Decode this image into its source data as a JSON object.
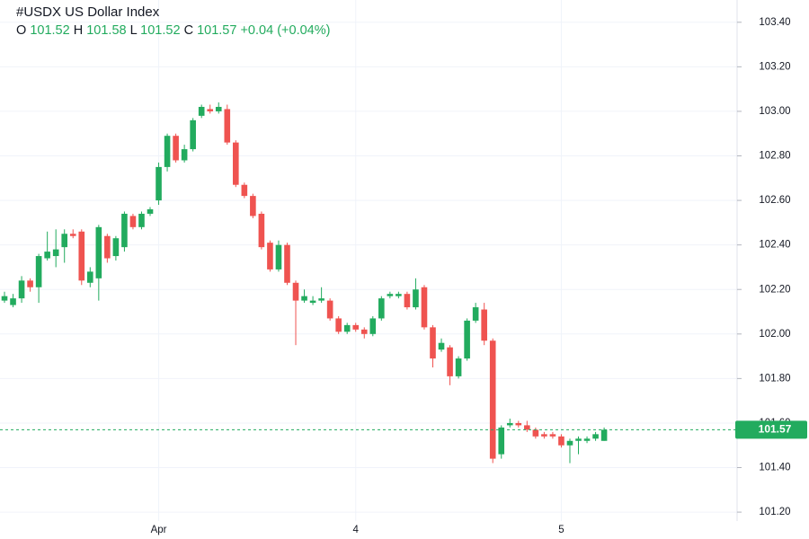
{
  "chart_data": {
    "type": "candlestick",
    "title": "#USDX US Dollar Index",
    "header": {
      "open_label": "O",
      "open": 101.52,
      "high_label": "H",
      "high": 101.58,
      "low_label": "L",
      "low": 101.52,
      "close_label": "C",
      "close": 101.57,
      "change": "+0.04",
      "change_pct": "(+0.04%)"
    },
    "categories": [
      null,
      null,
      null,
      null,
      null,
      null,
      null,
      null,
      null,
      null,
      null,
      null,
      null,
      null,
      null,
      null,
      null,
      null,
      "Apr",
      null,
      null,
      null,
      null,
      null,
      null,
      null,
      null,
      null,
      null,
      null,
      null,
      null,
      null,
      null,
      null,
      null,
      null,
      null,
      null,
      null,
      null,
      "4",
      null,
      null,
      null,
      null,
      null,
      null,
      null,
      null,
      null,
      null,
      null,
      null,
      null,
      null,
      null,
      null,
      null,
      null,
      null,
      null,
      null,
      null,
      null,
      "5",
      null,
      null,
      null,
      null,
      null
    ],
    "open": [
      102.15,
      102.13,
      102.16,
      102.24,
      102.21,
      102.34,
      102.35,
      102.39,
      102.45,
      102.46,
      102.23,
      102.25,
      102.44,
      102.35,
      102.39,
      102.53,
      102.48,
      102.54,
      102.6,
      102.75,
      102.89,
      102.78,
      102.83,
      102.98,
      103.01,
      103.0,
      103.01,
      102.86,
      102.67,
      102.62,
      102.54,
      102.41,
      102.29,
      102.4,
      102.23,
      102.15,
      102.14,
      102.15,
      102.15,
      102.07,
      102.01,
      102.04,
      102.02,
      102.0,
      102.07,
      102.17,
      102.17,
      102.18,
      102.12,
      102.21,
      102.03,
      101.93,
      101.94,
      101.81,
      101.89,
      102.06,
      102.11,
      101.97,
      101.46,
      101.59,
      101.6,
      101.59,
      101.57,
      101.55,
      101.55,
      101.54,
      101.5,
      101.52,
      101.52,
      101.53,
      101.52
    ],
    "high": [
      102.19,
      102.18,
      102.26,
      102.25,
      102.36,
      102.46,
      102.47,
      102.47,
      102.47,
      102.47,
      102.3,
      102.49,
      102.45,
      102.44,
      102.55,
      102.54,
      102.55,
      102.57,
      102.77,
      102.9,
      102.9,
      102.85,
      102.97,
      103.03,
      103.03,
      103.04,
      103.03,
      102.87,
      102.68,
      102.63,
      102.55,
      102.42,
      102.42,
      102.41,
      102.24,
      102.2,
      102.17,
      102.21,
      102.16,
      102.08,
      102.05,
      102.05,
      102.03,
      102.08,
      102.17,
      102.19,
      102.19,
      102.19,
      102.25,
      102.22,
      102.04,
      101.98,
      101.95,
      101.9,
      102.07,
      102.14,
      102.14,
      101.98,
      101.59,
      101.62,
      101.61,
      101.61,
      101.58,
      101.56,
      101.56,
      101.55,
      101.53,
      101.54,
      101.54,
      101.56,
      101.58
    ],
    "low": [
      102.14,
      102.12,
      102.14,
      102.19,
      102.14,
      102.33,
      102.3,
      102.32,
      102.43,
      102.22,
      102.21,
      102.15,
      102.32,
      102.33,
      102.37,
      102.47,
      102.47,
      102.53,
      102.58,
      102.73,
      102.77,
      102.77,
      102.82,
      102.97,
      102.99,
      102.99,
      102.85,
      102.66,
      102.61,
      102.52,
      102.38,
      102.28,
      102.28,
      102.22,
      101.95,
      102.14,
      102.13,
      102.14,
      102.06,
      102.0,
      102.0,
      102.01,
      101.98,
      101.99,
      102.06,
      102.16,
      102.16,
      102.11,
      102.11,
      102.02,
      101.85,
      101.92,
      101.77,
      101.8,
      101.88,
      102.05,
      101.95,
      101.42,
      101.44,
      101.58,
      101.58,
      101.56,
      101.53,
      101.53,
      101.53,
      101.49,
      101.42,
      101.46,
      101.51,
      101.52,
      101.52
    ],
    "close": [
      102.17,
      102.16,
      102.24,
      102.21,
      102.35,
      102.37,
      102.38,
      102.45,
      102.44,
      102.24,
      102.28,
      102.48,
      102.34,
      102.43,
      102.54,
      102.48,
      102.54,
      102.56,
      102.75,
      102.89,
      102.78,
      102.83,
      102.96,
      103.02,
      103.0,
      103.02,
      102.86,
      102.67,
      102.62,
      102.53,
      102.39,
      102.29,
      102.4,
      102.23,
      102.15,
      102.17,
      102.15,
      102.16,
      102.07,
      102.01,
      102.04,
      102.02,
      102.0,
      102.07,
      102.16,
      102.18,
      102.18,
      102.12,
      102.2,
      102.03,
      101.89,
      101.96,
      101.81,
      101.89,
      102.06,
      102.12,
      101.97,
      101.44,
      101.58,
      101.6,
      101.59,
      101.57,
      101.54,
      101.54,
      101.54,
      101.5,
      101.52,
      101.53,
      101.53,
      101.55,
      101.57
    ],
    "up_color": "#22ab5e",
    "down_color": "#ef5350",
    "last_price": 101.57,
    "ylim": [
      101.16,
      103.5
    ],
    "yticks": [
      {
        "value": 101.2,
        "label": "101.20"
      },
      {
        "value": 101.4,
        "label": "101.40"
      },
      {
        "value": 101.6,
        "label": "101.60"
      },
      {
        "value": 101.8,
        "label": "101.80"
      },
      {
        "value": 102,
        "label": "102.00"
      },
      {
        "value": 102.2,
        "label": "102.20"
      },
      {
        "value": 102.4,
        "label": "102.40"
      },
      {
        "value": 102.6,
        "label": "102.60"
      },
      {
        "value": 102.8,
        "label": "102.80"
      },
      {
        "value": 103,
        "label": "103.00"
      },
      {
        "value": 103.2,
        "label": "103.20"
      },
      {
        "value": 103.4,
        "label": "103.40"
      }
    ],
    "grid": true
  }
}
